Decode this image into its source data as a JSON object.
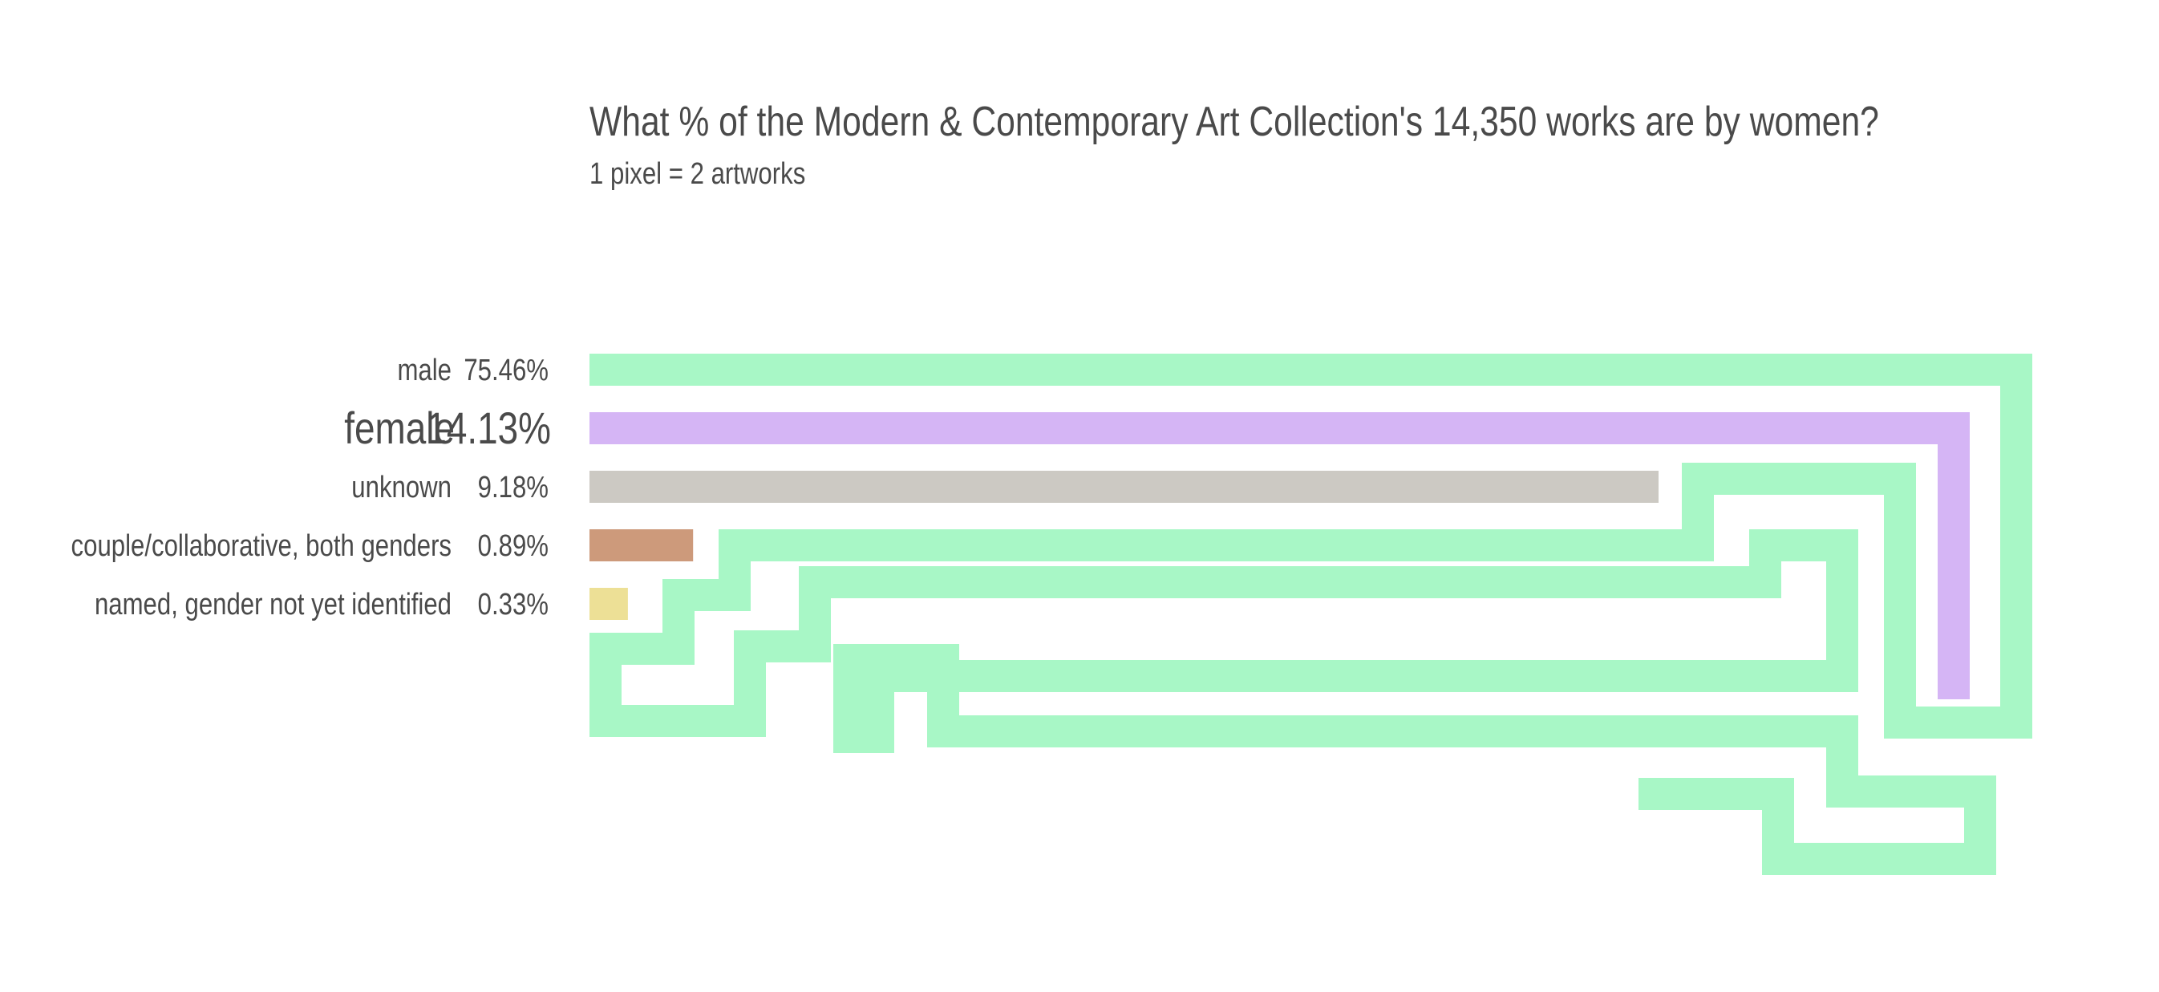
{
  "chart_data": {
    "type": "bar",
    "title": "What % of the Modern & Contemporary Art Collection's 14,350 works are by women?",
    "subtitle": "1 pixel = 2 artworks",
    "categories": [
      "male",
      "female",
      "unknown",
      "couple/collaborative, both genders",
      "named, gender not yet identified"
    ],
    "values": [
      75.46,
      14.13,
      9.18,
      0.89,
      0.33
    ],
    "value_labels": [
      "75.46%",
      "14.13%",
      "9.18%",
      "0.89%",
      "0.33%"
    ],
    "highlight": "female",
    "colors": {
      "male": "#a8f7c6",
      "female": "#d5b5f5",
      "unknown": "#ccc9c3",
      "couple/collaborative, both genders": "#cd9a7b",
      "named, gender not yet identified": "#ede096"
    }
  }
}
